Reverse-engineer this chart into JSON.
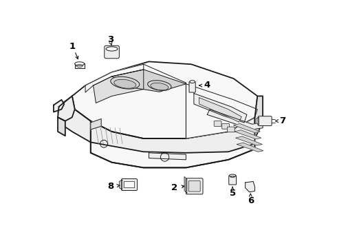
{
  "background_color": "#ffffff",
  "line_color": "#1a1a1a",
  "label_color": "#000000",
  "font_size": 9.5,
  "lw_main": 1.3,
  "lw_thin": 0.7,
  "lw_detail": 0.5,
  "fill_light": "#f8f8f8",
  "fill_mid": "#eeeeee",
  "fill_dark": "#e0e0e0",
  "fill_darker": "#d4d4d4"
}
